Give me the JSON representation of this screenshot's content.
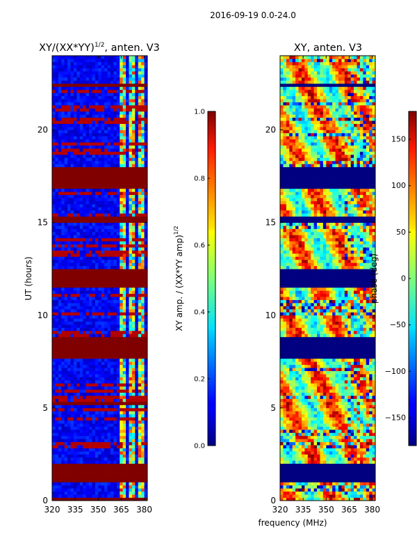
{
  "suptitle": "2016-09-19 0.0-24.0",
  "chart_data": [
    {
      "type": "heatmap",
      "title": "XY/(XX*YY)",
      "title_exponent": "1/2",
      "title_suffix": ", anten. V3",
      "xlabel": "",
      "ylabel": "UT (hours)",
      "x_ticks": [
        "320",
        "335",
        "350",
        "365",
        "380"
      ],
      "x_tick_values": [
        320,
        335,
        350,
        365,
        380
      ],
      "y_ticks": [
        "0",
        "5",
        "10",
        "15",
        "20"
      ],
      "y_tick_values": [
        0,
        5,
        10,
        15,
        20
      ],
      "xlim": [
        320,
        382
      ],
      "ylim": [
        0,
        24
      ],
      "colorbar": {
        "label": "XY amp. / (XX*YY amp)",
        "label_exponent": "1/2",
        "ticks": [
          "0.0",
          "0.2",
          "0.4",
          "0.6",
          "0.8",
          "1.0"
        ],
        "tick_values": [
          0.0,
          0.2,
          0.4,
          0.6,
          0.8,
          1.0
        ],
        "range": [
          0.0,
          1.0
        ],
        "colormap": "jet"
      },
      "saturated_bands_hours": [
        [
          0.0,
          0.1
        ],
        [
          1.0,
          2.0
        ],
        [
          5.1,
          5.4
        ],
        [
          7.6,
          8.8
        ],
        [
          11.5,
          12.5
        ],
        [
          15.0,
          15.4
        ],
        [
          16.8,
          18.0
        ],
        [
          22.4,
          22.5
        ]
      ],
      "rfi_channels_mhz": [
        365,
        366,
        367,
        372,
        373,
        377,
        378,
        379
      ]
    },
    {
      "type": "heatmap",
      "title": "XY, anten. V3",
      "xlabel": "frequency (MHz)",
      "ylabel": "",
      "x_ticks": [
        "320",
        "335",
        "350",
        "365",
        "380"
      ],
      "x_tick_values": [
        320,
        335,
        350,
        365,
        380
      ],
      "y_ticks": [
        "0",
        "5",
        "10",
        "15",
        "20"
      ],
      "y_tick_values": [
        0,
        5,
        10,
        15,
        20
      ],
      "xlim": [
        320,
        382
      ],
      "ylim": [
        0,
        24
      ],
      "colorbar": {
        "label": "phase (deg)",
        "ticks": [
          "−150",
          "−100",
          "−50",
          "0",
          "50",
          "100",
          "150"
        ],
        "tick_values": [
          -150,
          -100,
          -50,
          0,
          50,
          100,
          150
        ],
        "range": [
          -180,
          180
        ],
        "colormap": "jet"
      },
      "flagged_bands_hours": [
        [
          1.0,
          2.0
        ],
        [
          7.6,
          8.8
        ],
        [
          11.5,
          12.5
        ],
        [
          15.0,
          15.4
        ],
        [
          16.8,
          18.0
        ],
        [
          22.4,
          22.5
        ]
      ]
    }
  ]
}
